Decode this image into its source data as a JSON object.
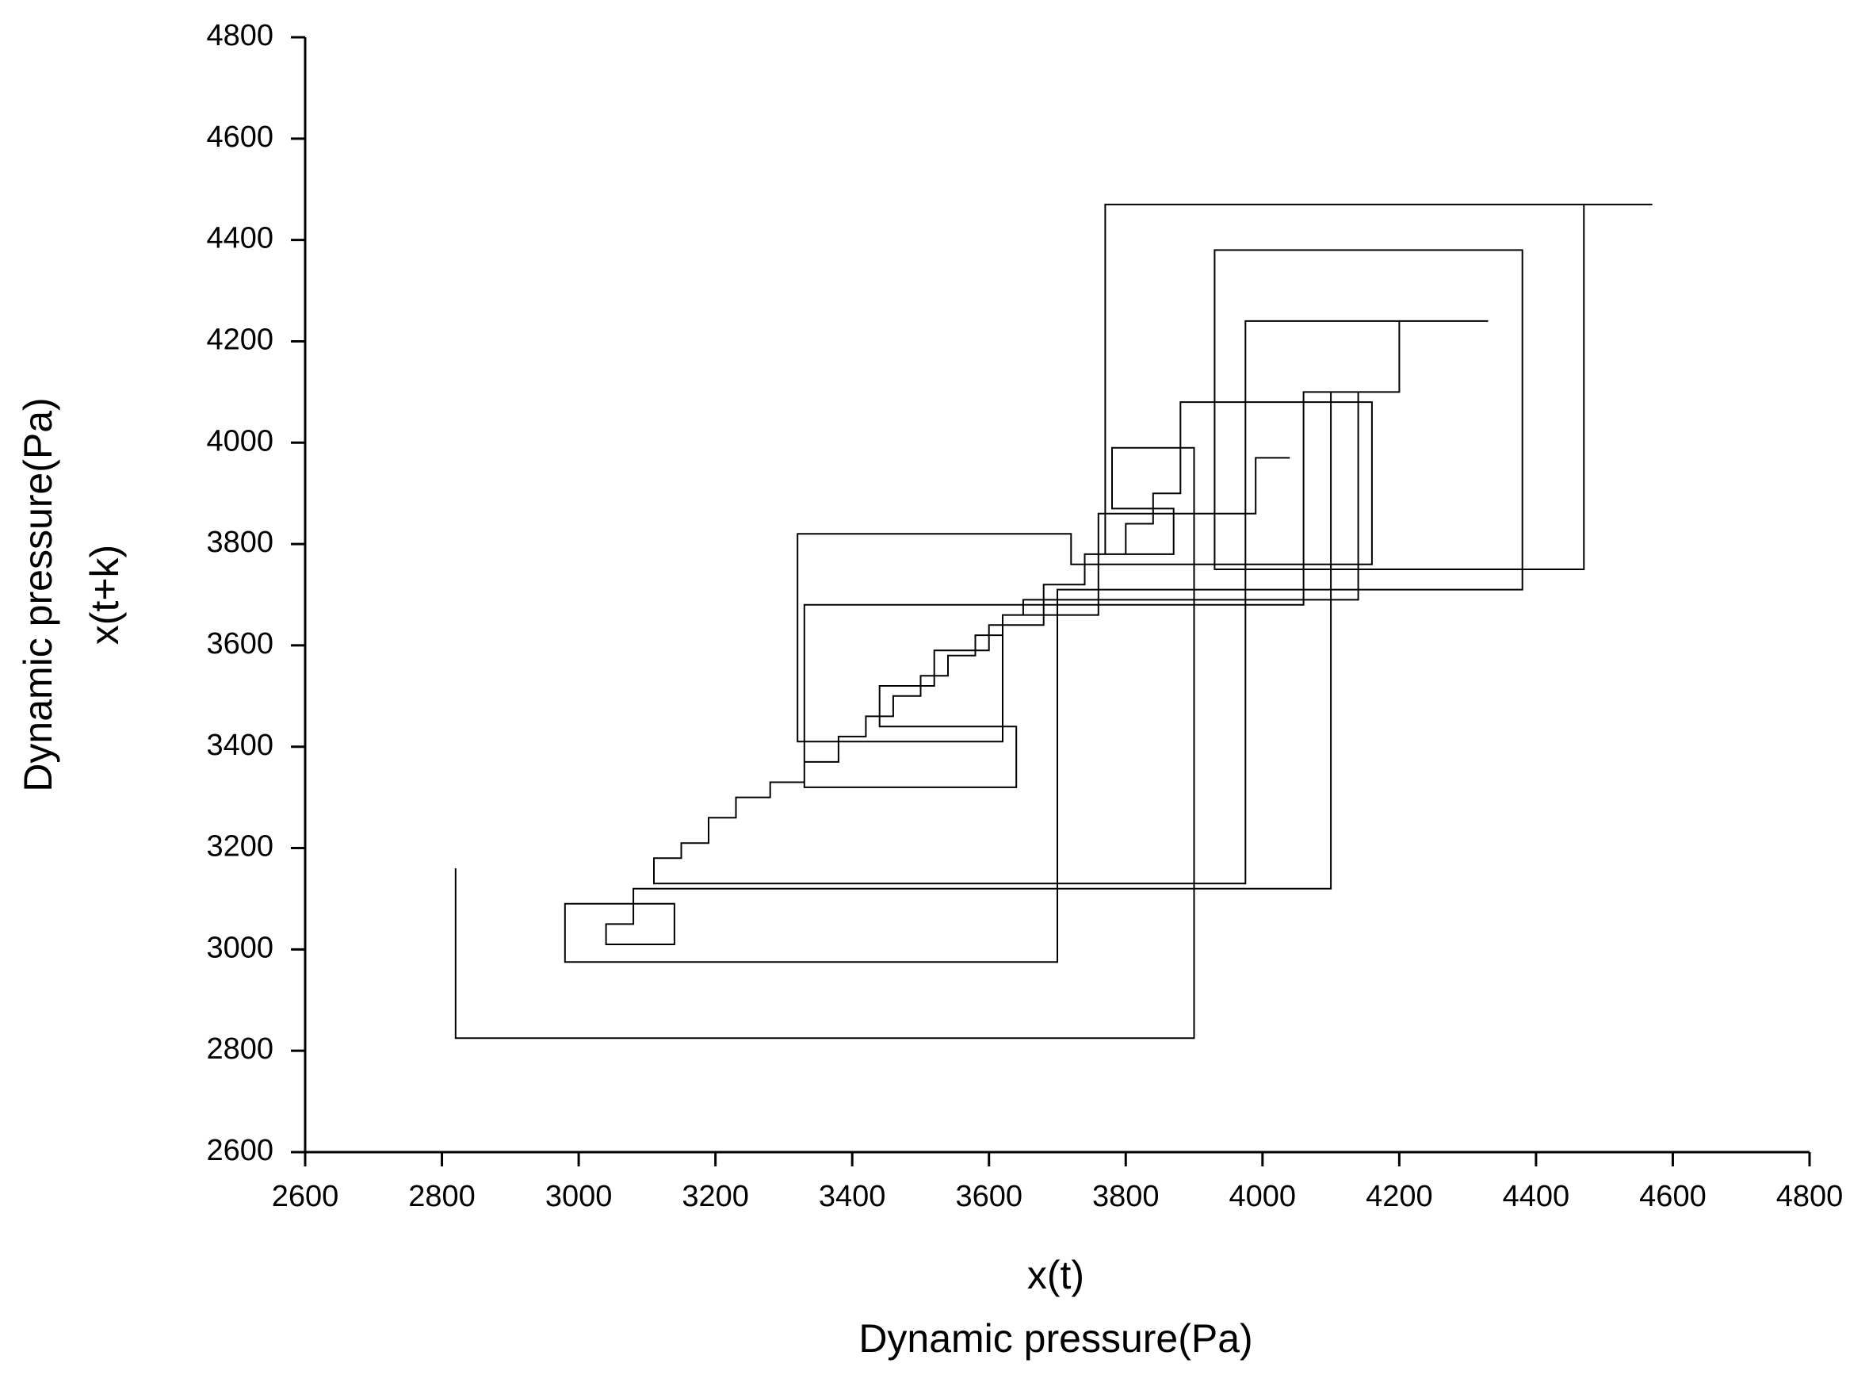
{
  "chart_data": {
    "type": "line",
    "xlabel": [
      "x(t)",
      "Dynamic pressure(Pa)"
    ],
    "ylabel": [
      "Dynamic pressure(Pa)",
      "x(t+k)"
    ],
    "xlim": [
      2600,
      4800
    ],
    "ylim": [
      2600,
      4800
    ],
    "xticks": [
      2600,
      2800,
      3000,
      3200,
      3400,
      3600,
      3800,
      4000,
      4200,
      4400,
      4600,
      4800
    ],
    "yticks": [
      2600,
      2800,
      3000,
      3200,
      3400,
      3600,
      3800,
      4000,
      4200,
      4400,
      4600,
      4800
    ],
    "x": [
      2820,
      2820,
      3900,
      3900,
      3780,
      3780,
      3870,
      3870,
      3770,
      3770,
      4570,
      4470,
      4470,
      3930,
      3930,
      4380,
      4380,
      3700,
      3700,
      2980,
      2980,
      3140,
      3140,
      3040,
      3040,
      3080,
      3080,
      4100,
      4100,
      4140,
      4140,
      3650,
      3650,
      3620,
      3620,
      3580,
      3580,
      3540,
      3540,
      3500,
      3500,
      3460,
      3460,
      3420,
      3420,
      3380,
      3380,
      3330,
      3330,
      3280,
      3280,
      3230,
      3230,
      3190,
      3190,
      3150,
      3150,
      3110,
      3110,
      3975,
      3975,
      4330,
      4200,
      4200,
      4060,
      4060,
      3330,
      3330,
      3640,
      3640,
      3440,
      3440,
      3520,
      3520,
      3600,
      3600,
      3680,
      3680,
      3740,
      3740,
      3800,
      3800,
      3840,
      3840,
      3880,
      3880,
      4160,
      4160,
      3720,
      3720,
      3320,
      3320,
      3620,
      3620,
      3700,
      3760,
      3760,
      3990,
      3990,
      4040
    ],
    "series": [
      {
        "color": "#000000",
        "values": [
          3160,
          2825,
          2825,
          3990,
          3990,
          3870,
          3870,
          3780,
          3780,
          4470,
          4470,
          4470,
          3750,
          3750,
          4380,
          4380,
          3710,
          3710,
          2975,
          2975,
          3090,
          3090,
          3010,
          3010,
          3050,
          3050,
          3120,
          3120,
          4100,
          4100,
          3690,
          3690,
          3660,
          3660,
          3620,
          3620,
          3580,
          3580,
          3540,
          3540,
          3500,
          3500,
          3460,
          3460,
          3420,
          3420,
          3370,
          3370,
          3330,
          3330,
          3300,
          3300,
          3260,
          3260,
          3210,
          3210,
          3180,
          3180,
          3130,
          3130,
          4240,
          4240,
          4240,
          4100,
          4100,
          3680,
          3680,
          3320,
          3320,
          3440,
          3440,
          3520,
          3520,
          3590,
          3590,
          3640,
          3640,
          3720,
          3720,
          3780,
          3780,
          3840,
          3840,
          3900,
          3900,
          4080,
          4080,
          3760,
          3760,
          3820,
          3820,
          3410,
          3410,
          3660,
          3660,
          3660,
          3860,
          3860,
          3970,
          3970
        ]
      }
    ]
  }
}
